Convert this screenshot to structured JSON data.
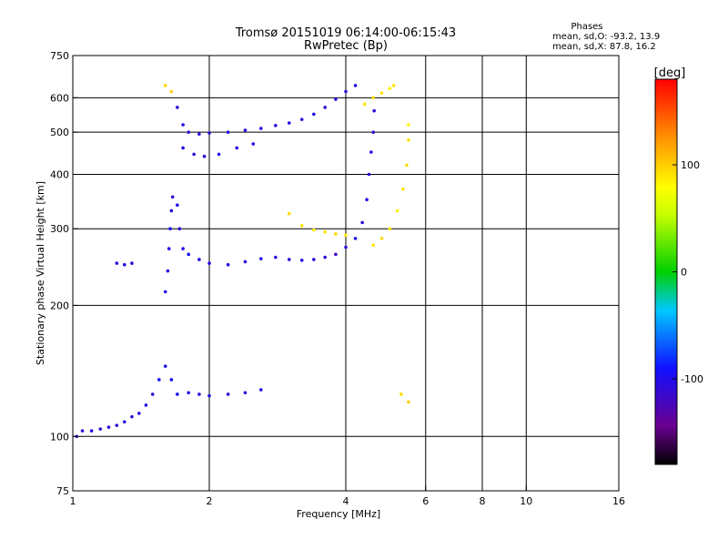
{
  "chart_data": {
    "type": "scatter",
    "title": "Tromsø 20151019 06:14:00-06:15:43",
    "subtitle": "RwPretec (Bp)",
    "stats": {
      "heading": "Phases",
      "line_o": "mean, sd,O: -93.2, 13.9",
      "line_x": "mean, sd,X:  87.8, 16.2"
    },
    "xlabel": "Frequency [MHz]",
    "ylabel": "Stationary phase Virtual Height [km]",
    "x_scale": "log",
    "y_scale": "log",
    "xlim": [
      1,
      16
    ],
    "ylim": [
      75,
      750
    ],
    "x_ticks": [
      1,
      2,
      4,
      6,
      8,
      10,
      16
    ],
    "x_tick_labels": [
      "1",
      "2",
      "4",
      "6",
      "8",
      "10",
      "16"
    ],
    "y_ticks": [
      75,
      100,
      200,
      300,
      400,
      500,
      600,
      750
    ],
    "y_tick_labels": [
      "75",
      "100",
      "200",
      "300",
      "400",
      "500",
      "600",
      "750"
    ],
    "x_gridlines": [
      2,
      4,
      6,
      8,
      10
    ],
    "y_gridlines": [
      100,
      200,
      300,
      400,
      500,
      600
    ],
    "grid": true,
    "colorbar": {
      "label": "[deg]",
      "min": -180,
      "max": 180,
      "ticks": [
        100,
        0,
        -100
      ],
      "tick_labels": [
        "100",
        "0",
        "-100"
      ]
    },
    "series": [
      {
        "points": [
          [
            1.02,
            100,
            -110
          ],
          [
            1.05,
            103,
            -105
          ],
          [
            1.1,
            103,
            -100
          ],
          [
            1.15,
            104,
            -110
          ],
          [
            1.2,
            105,
            -105
          ],
          [
            1.25,
            106,
            -110
          ],
          [
            1.3,
            108,
            -100
          ],
          [
            1.35,
            111,
            -105
          ],
          [
            1.4,
            113,
            -110
          ],
          [
            1.45,
            118,
            -100
          ],
          [
            1.5,
            125,
            -110
          ],
          [
            1.55,
            135,
            -90
          ],
          [
            1.6,
            145,
            -100
          ],
          [
            1.65,
            135,
            -95
          ],
          [
            1.7,
            125,
            -90
          ],
          [
            1.8,
            126,
            -100
          ],
          [
            1.9,
            125,
            -105
          ],
          [
            2.0,
            124,
            -100
          ],
          [
            2.2,
            125,
            -110
          ],
          [
            2.4,
            126,
            -105
          ],
          [
            2.6,
            128,
            -100
          ],
          [
            1.6,
            215,
            -100
          ],
          [
            1.62,
            240,
            -105
          ],
          [
            1.63,
            270,
            -100
          ],
          [
            1.64,
            300,
            -95
          ],
          [
            1.65,
            330,
            -100
          ],
          [
            1.66,
            355,
            -110
          ],
          [
            1.7,
            340,
            -100
          ],
          [
            1.72,
            300,
            -105
          ],
          [
            1.75,
            270,
            -100
          ],
          [
            1.8,
            262,
            -95
          ],
          [
            1.9,
            255,
            -100
          ],
          [
            2.0,
            250,
            -105
          ],
          [
            2.2,
            248,
            -100
          ],
          [
            2.4,
            252,
            -110
          ],
          [
            2.6,
            256,
            -100
          ],
          [
            2.8,
            258,
            -105
          ],
          [
            3.0,
            255,
            -110
          ],
          [
            3.2,
            254,
            -100
          ],
          [
            3.4,
            255,
            -105
          ],
          [
            3.6,
            258,
            -110
          ],
          [
            3.8,
            262,
            -120
          ],
          [
            4.0,
            272,
            -110
          ],
          [
            4.2,
            285,
            -100
          ],
          [
            4.35,
            310,
            -105
          ],
          [
            4.45,
            350,
            -100
          ],
          [
            4.5,
            400,
            -105
          ],
          [
            4.55,
            450,
            -100
          ],
          [
            4.6,
            500,
            -105
          ],
          [
            4.62,
            560,
            -110
          ],
          [
            1.25,
            250,
            -105
          ],
          [
            1.3,
            248,
            -100
          ],
          [
            1.35,
            250,
            -110
          ],
          [
            1.7,
            570,
            -110
          ],
          [
            1.75,
            520,
            -100
          ],
          [
            1.8,
            500,
            -105
          ],
          [
            1.9,
            495,
            -100
          ],
          [
            2.0,
            498,
            -110
          ],
          [
            2.2,
            500,
            -100
          ],
          [
            2.4,
            505,
            -105
          ],
          [
            2.6,
            510,
            -100
          ],
          [
            2.8,
            518,
            -110
          ],
          [
            3.0,
            525,
            -100
          ],
          [
            3.2,
            535,
            -105
          ],
          [
            3.4,
            550,
            -100
          ],
          [
            3.6,
            570,
            -110
          ],
          [
            3.8,
            595,
            -100
          ],
          [
            4.0,
            620,
            -105
          ],
          [
            4.2,
            640,
            -100
          ],
          [
            1.75,
            460,
            -100
          ],
          [
            1.85,
            445,
            -105
          ],
          [
            1.95,
            440,
            -110
          ],
          [
            2.1,
            445,
            -100
          ],
          [
            2.3,
            460,
            -105
          ],
          [
            2.5,
            470,
            -100
          ]
        ]
      },
      {
        "points": [
          [
            3.0,
            325,
            95
          ],
          [
            3.2,
            305,
            90
          ],
          [
            3.4,
            298,
            85
          ],
          [
            3.6,
            295,
            90
          ],
          [
            3.8,
            292,
            95
          ],
          [
            4.0,
            290,
            85
          ],
          [
            4.6,
            275,
            90
          ],
          [
            4.8,
            285,
            95
          ],
          [
            5.0,
            300,
            90
          ],
          [
            5.2,
            330,
            85
          ],
          [
            5.35,
            370,
            90
          ],
          [
            5.45,
            420,
            95
          ],
          [
            5.5,
            480,
            90
          ],
          [
            5.5,
            520,
            85
          ],
          [
            4.4,
            580,
            90
          ],
          [
            4.6,
            600,
            95
          ],
          [
            4.8,
            615,
            90
          ],
          [
            5.0,
            630,
            85
          ],
          [
            5.1,
            640,
            90
          ],
          [
            1.65,
            620,
            100
          ],
          [
            1.6,
            640,
            95
          ],
          [
            5.3,
            125,
            95
          ],
          [
            5.5,
            120,
            100
          ]
        ]
      }
    ]
  }
}
